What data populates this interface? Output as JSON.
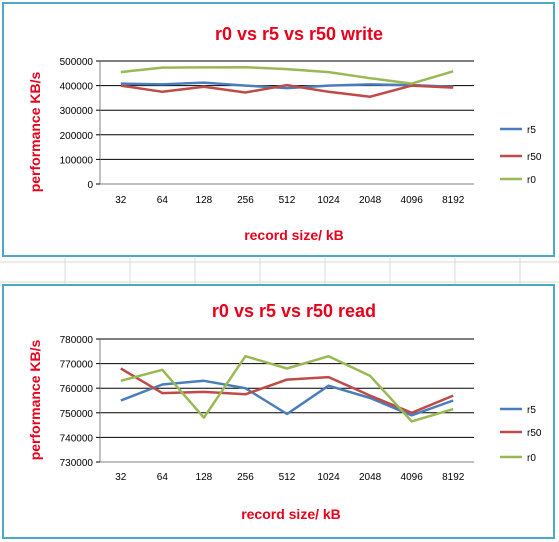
{
  "spreadsheet": {
    "gridline_color": "#d9d9d9"
  },
  "chart_data": [
    {
      "type": "line",
      "title": "r0  vs r5 vs r50 write",
      "xlabel": "record size/ kB",
      "ylabel": "performance KB/s",
      "categories": [
        "32",
        "64",
        "128",
        "256",
        "512",
        "1024",
        "2048",
        "4096",
        "8192"
      ],
      "ylim": [
        0,
        500000
      ],
      "yticks": [
        0,
        100000,
        200000,
        300000,
        400000,
        500000
      ],
      "ytick_labels": [
        "0",
        "100000",
        "200000",
        "300000",
        "400000",
        "500000"
      ],
      "grid": true,
      "legend_position": "right",
      "series": [
        {
          "name": "r5",
          "color": "#4a7ebb",
          "values": [
            408000,
            405000,
            412000,
            400000,
            390000,
            400000,
            405000,
            402000,
            395000
          ]
        },
        {
          "name": "r50",
          "color": "#be4b48",
          "values": [
            400000,
            375000,
            395000,
            372000,
            402000,
            375000,
            355000,
            400000,
            392000
          ]
        },
        {
          "name": "r0",
          "color": "#98b954",
          "values": [
            455000,
            473000,
            474000,
            475000,
            467000,
            455000,
            430000,
            408000,
            458000
          ]
        }
      ]
    },
    {
      "type": "line",
      "title": "r0 vs r5 vs r50 read",
      "xlabel": "record size/ kB",
      "ylabel": "performance KB/s",
      "categories": [
        "32",
        "64",
        "128",
        "256",
        "512",
        "1024",
        "2048",
        "4096",
        "8192"
      ],
      "ylim": [
        730000,
        780000
      ],
      "yticks": [
        730000,
        740000,
        750000,
        760000,
        770000,
        780000
      ],
      "ytick_labels": [
        "730000",
        "740000",
        "750000",
        "760000",
        "770000",
        "780000"
      ],
      "grid": true,
      "legend_position": "right",
      "series": [
        {
          "name": "r5",
          "color": "#4a7ebb",
          "values": [
            755000,
            761500,
            763000,
            760000,
            749500,
            761000,
            756000,
            749000,
            755000
          ]
        },
        {
          "name": "r50",
          "color": "#be4b48",
          "values": [
            768000,
            758000,
            758500,
            757500,
            763500,
            764500,
            757000,
            750000,
            757000
          ]
        },
        {
          "name": "r0",
          "color": "#98b954",
          "values": [
            763000,
            767500,
            748000,
            773000,
            768000,
            773000,
            765000,
            746500,
            751500
          ]
        }
      ]
    }
  ]
}
